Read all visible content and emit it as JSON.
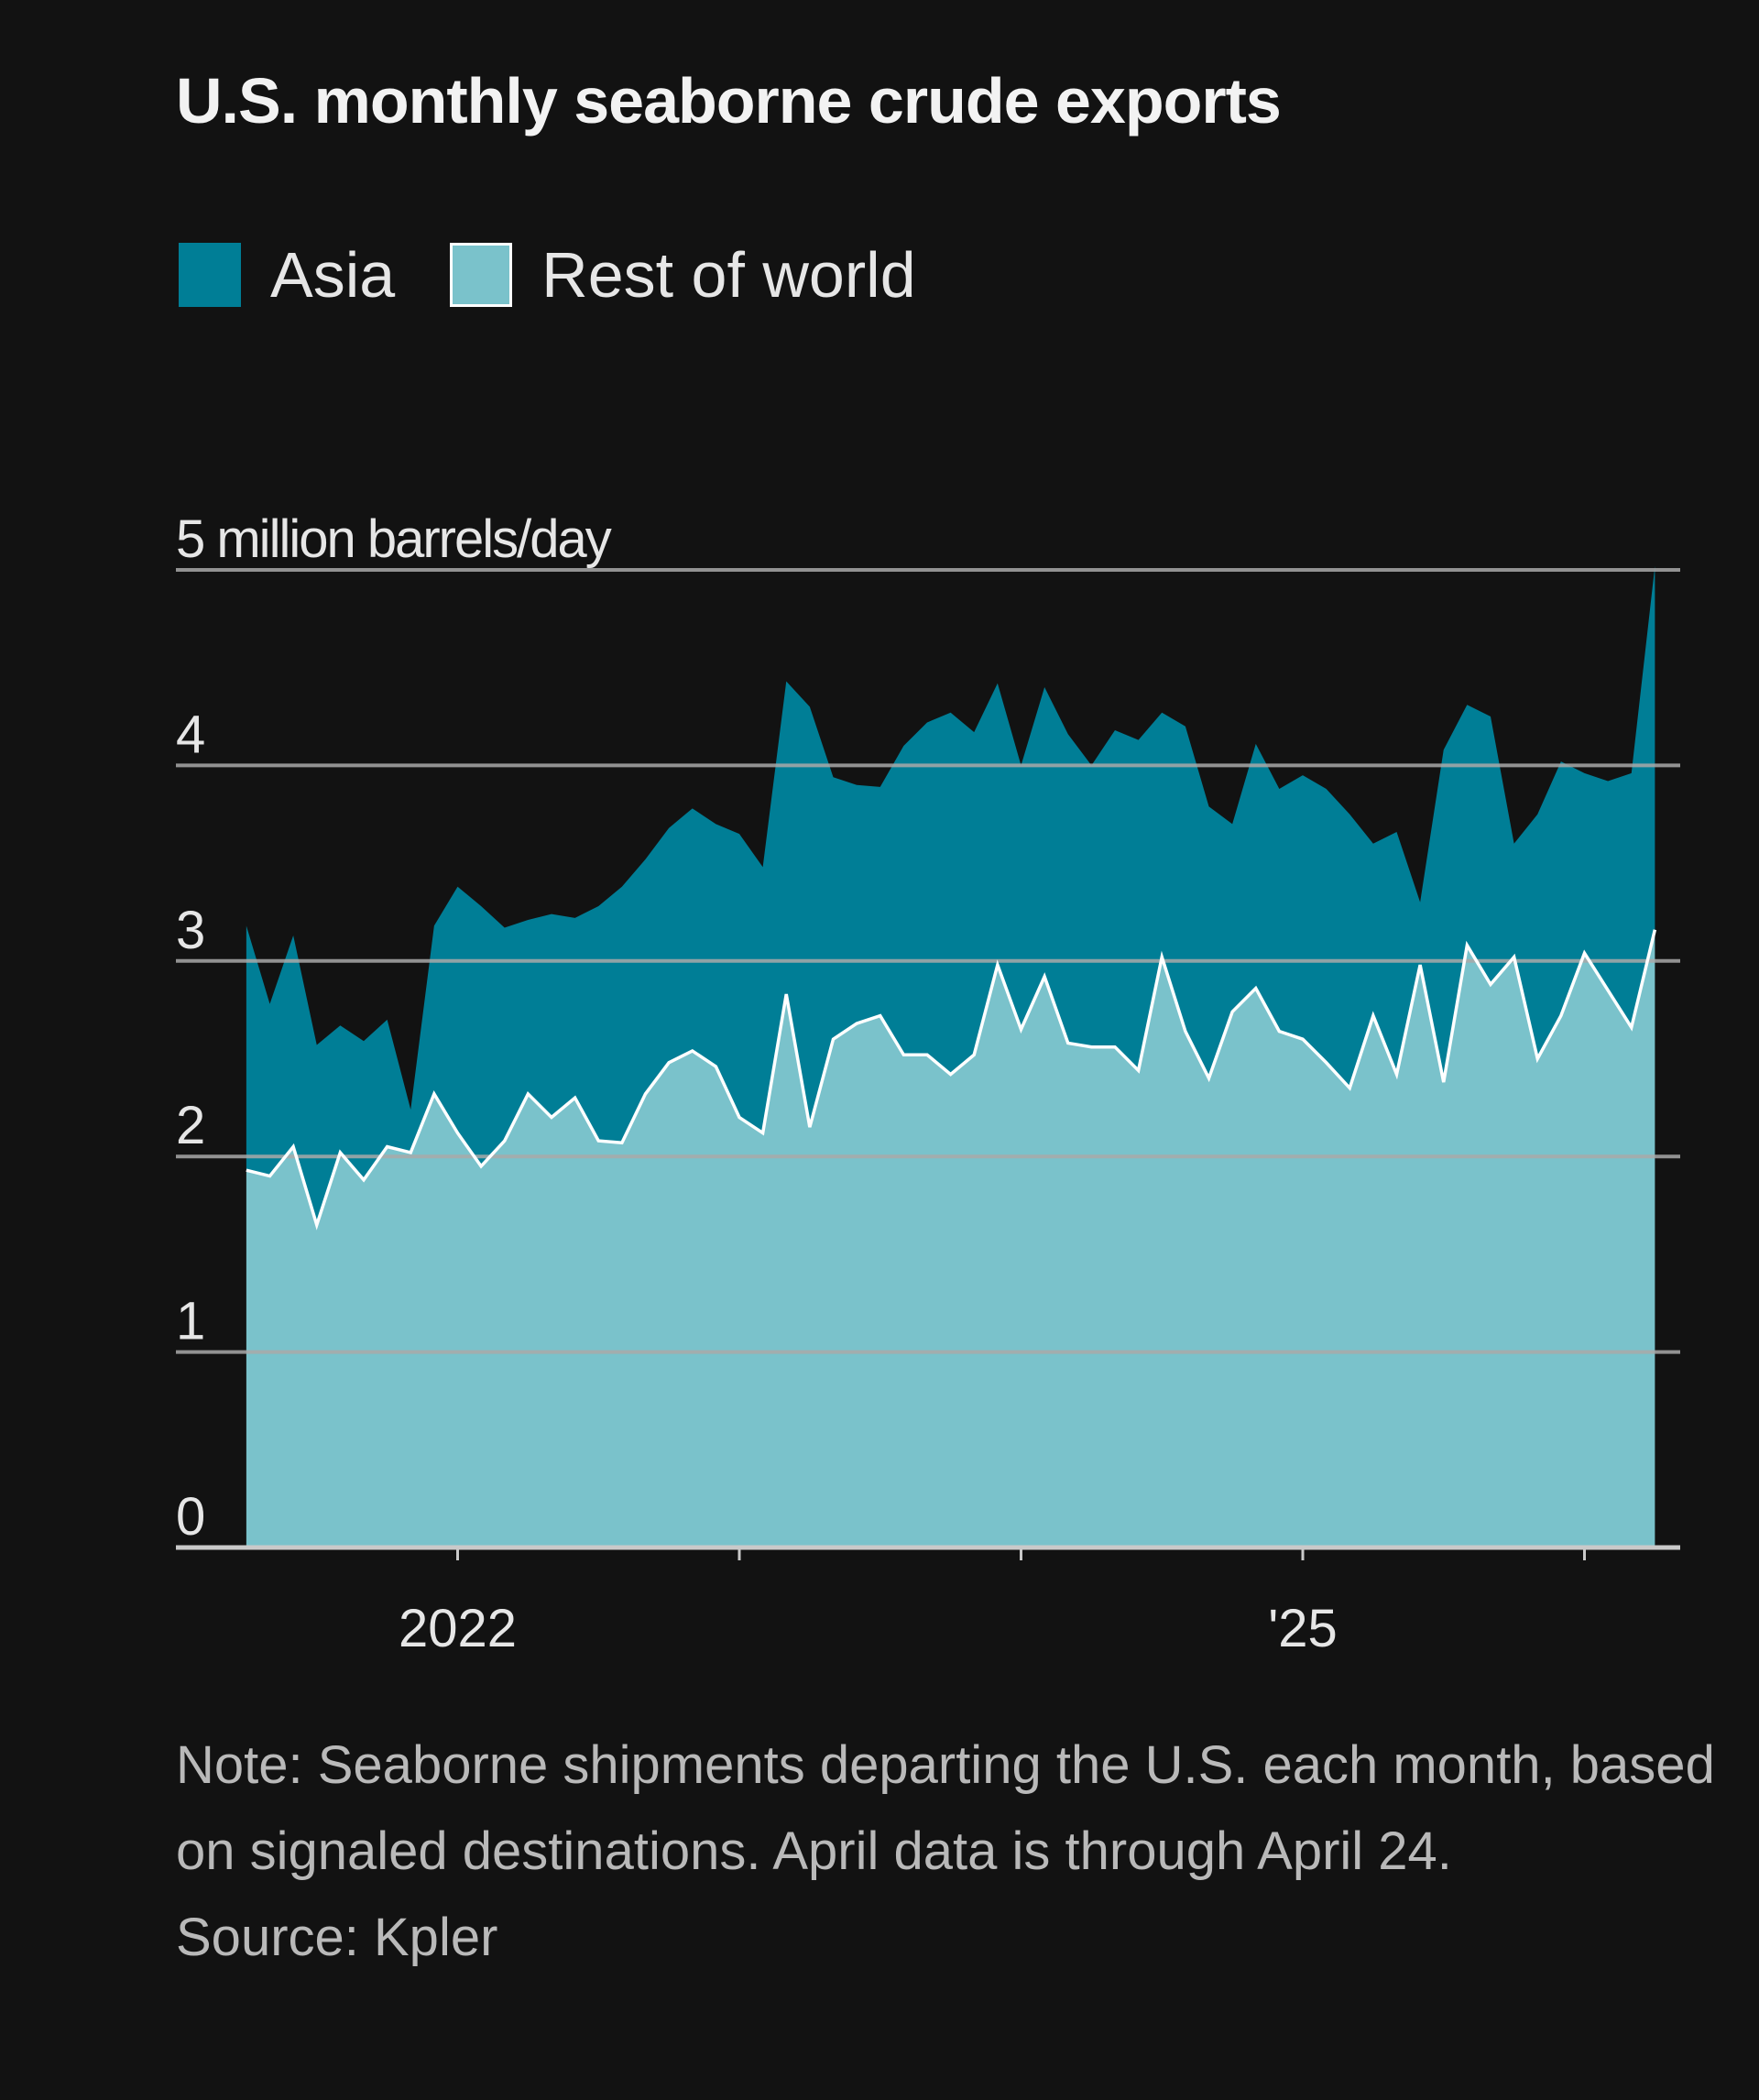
{
  "title": "U.S. monthly seaborne crude exports",
  "legend": [
    {
      "label": "Asia",
      "color": "#007e96"
    },
    {
      "label": "Rest of world",
      "color": "#7ac2cb"
    }
  ],
  "note": "Note: Seaborne shipments departing the U.S. each month, based on signaled destinations. April data is through April 24.",
  "source": "Source: Kpler",
  "colors": {
    "background": "#121212",
    "asia": "#007e96",
    "rest_of_world": "#7ac2cb",
    "rest_line": "#ffffff",
    "grid": "#a9a9a9",
    "axis_text": "#e6e6e6"
  },
  "chart_data": {
    "type": "area",
    "stacked": true,
    "title": "U.S. monthly seaborne crude exports",
    "ylabel": "5 million barrels/day",
    "ylim": [
      0,
      5
    ],
    "yticks": [
      {
        "value": 0,
        "label": "0"
      },
      {
        "value": 1,
        "label": "1"
      },
      {
        "value": 2,
        "label": "2"
      },
      {
        "value": 3,
        "label": "3"
      },
      {
        "value": 4,
        "label": "4"
      },
      {
        "value": 5,
        "label": "5 million barrels/day"
      }
    ],
    "x_start_month_index": 3,
    "x_ticks": [
      {
        "month_index": 12,
        "label": "2022"
      },
      {
        "month_index": 24,
        "label": ""
      },
      {
        "month_index": 36,
        "label": ""
      },
      {
        "month_index": 48,
        "label": "'25"
      },
      {
        "month_index": 60,
        "label": ""
      }
    ],
    "xlim_month_index": [
      0,
      64
    ],
    "series": [
      {
        "name": "Rest of world",
        "values": [
          1.93,
          1.9,
          2.05,
          1.65,
          2.02,
          1.88,
          2.05,
          2.02,
          2.32,
          2.12,
          1.95,
          2.08,
          2.32,
          2.2,
          2.3,
          2.08,
          2.07,
          2.32,
          2.48,
          2.54,
          2.46,
          2.2,
          2.12,
          2.83,
          2.15,
          2.6,
          2.68,
          2.72,
          2.52,
          2.52,
          2.42,
          2.52,
          2.98,
          2.65,
          2.92,
          2.58,
          2.56,
          2.56,
          2.44,
          3.02,
          2.64,
          2.4,
          2.74,
          2.86,
          2.64,
          2.6,
          2.48,
          2.35,
          2.72,
          2.42,
          2.98,
          2.38,
          3.08,
          2.88,
          3.02,
          2.5,
          2.72,
          3.04,
          2.85,
          2.66,
          3.16
        ]
      },
      {
        "name": "Asia",
        "values": [
          1.25,
          0.88,
          1.08,
          0.92,
          0.65,
          0.71,
          0.65,
          0.22,
          0.86,
          1.26,
          1.33,
          1.09,
          0.89,
          1.04,
          0.92,
          1.2,
          1.31,
          1.2,
          1.2,
          1.24,
          1.24,
          1.45,
          1.36,
          1.6,
          2.15,
          1.34,
          1.22,
          1.17,
          1.58,
          1.7,
          1.85,
          1.65,
          1.44,
          1.35,
          1.48,
          1.58,
          1.44,
          1.62,
          1.69,
          1.25,
          1.56,
          1.39,
          0.96,
          1.25,
          1.24,
          1.35,
          1.4,
          1.4,
          0.88,
          1.24,
          0.32,
          1.7,
          1.23,
          1.37,
          0.58,
          1.25,
          1.3,
          0.92,
          1.07,
          1.3,
          1.86
        ]
      }
    ],
    "legend": [
      "Asia",
      "Rest of world"
    ],
    "grid": true
  }
}
